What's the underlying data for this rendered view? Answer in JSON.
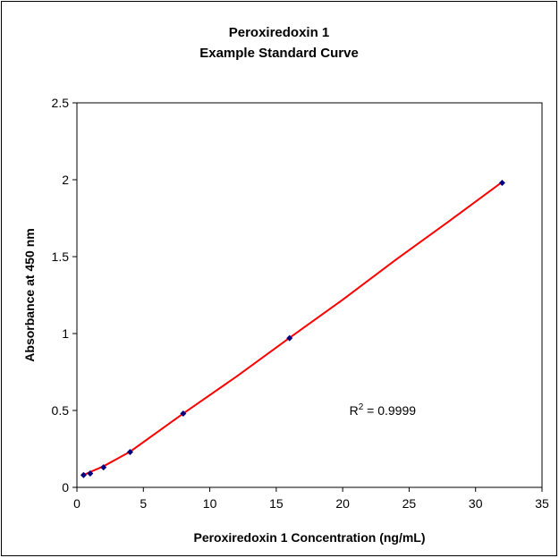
{
  "chart_data": {
    "type": "scatter",
    "title": "Peroxiredoxin 1",
    "subtitle": "Example Standard Curve",
    "xlabel": "Peroxiredoxin 1 Concentration (ng/mL)",
    "ylabel": "Absorbance at 450 nm",
    "xlim": [
      0,
      35
    ],
    "ylim": [
      0,
      2.5
    ],
    "xticks": [
      0,
      5,
      10,
      15,
      20,
      25,
      30,
      35
    ],
    "yticks": [
      0,
      0.5,
      1,
      1.5,
      2,
      2.5
    ],
    "grid": false,
    "legend": "none",
    "series": [
      {
        "x": [
          0.5,
          1,
          2,
          4,
          8,
          16,
          32
        ],
        "y": [
          0.08,
          0.09,
          0.13,
          0.23,
          0.48,
          0.97,
          1.98
        ],
        "marker_color": "#000080"
      }
    ],
    "trendline": {
      "color": "#ff0000",
      "x": [
        0.5,
        1,
        2,
        4,
        8,
        12,
        16,
        20,
        24,
        28,
        32
      ],
      "y": [
        0.08,
        0.1,
        0.137,
        0.232,
        0.48,
        0.72,
        0.972,
        1.22,
        1.48,
        1.73,
        1.985
      ]
    },
    "annotation": {
      "text_prefix": "R",
      "superscript": "2",
      "text_suffix": " = 0.9999",
      "x": 20.5,
      "y": 0.47
    }
  }
}
